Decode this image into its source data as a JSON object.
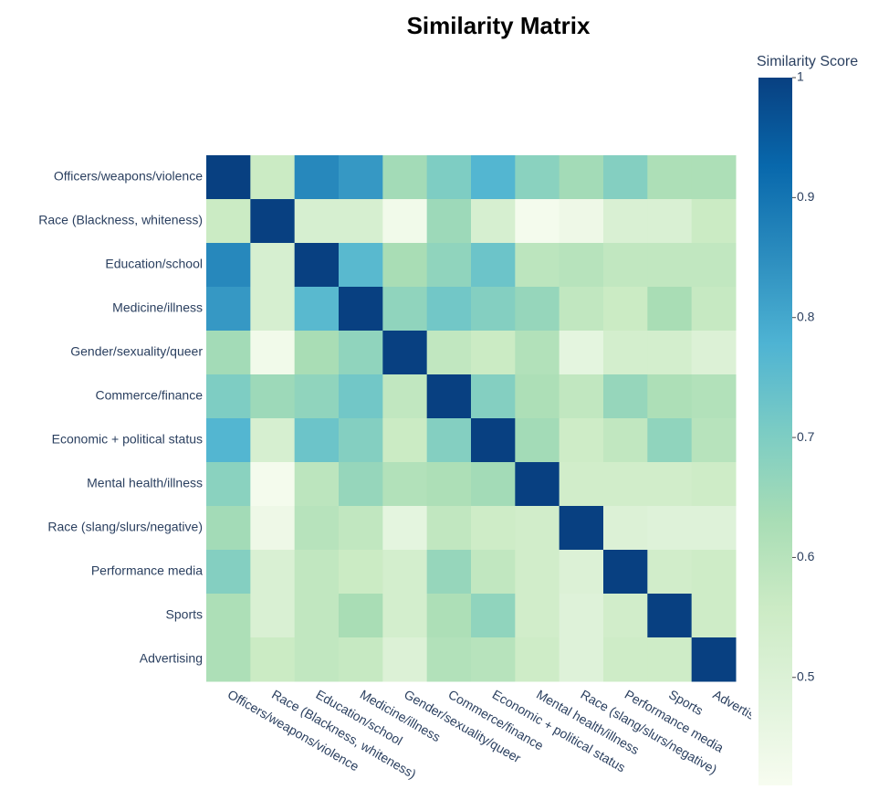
{
  "chart_data": {
    "type": "heatmap",
    "title": "Similarity Matrix",
    "colorbar_title": "Similarity Score",
    "x": [
      "Officers/weapons/violence",
      "Race (Blackness, whiteness)",
      "Education/school",
      "Medicine/illness",
      "Gender/sexuality/queer",
      "Commerce/finance",
      "Economic + political status",
      "Mental health/illness",
      "Race (slang/slurs/negative)",
      "Performance media",
      "Sports",
      "Advertising"
    ],
    "y": [
      "Officers/weapons/violence",
      "Race (Blackness, whiteness)",
      "Education/school",
      "Medicine/illness",
      "Gender/sexuality/queer",
      "Commerce/finance",
      "Economic + political status",
      "Mental health/illness",
      "Race (slang/slurs/negative)",
      "Performance media",
      "Sports",
      "Advertising"
    ],
    "z": [
      [
        1,
        0.56,
        0.86,
        0.83,
        0.64,
        0.7,
        0.77,
        0.68,
        0.64,
        0.69,
        0.62,
        0.62
      ],
      [
        0.56,
        1,
        0.52,
        0.52,
        0.43,
        0.65,
        0.52,
        0.42,
        0.44,
        0.51,
        0.51,
        0.56
      ],
      [
        0.86,
        0.52,
        1,
        0.76,
        0.63,
        0.67,
        0.73,
        0.59,
        0.6,
        0.58,
        0.58,
        0.58
      ],
      [
        0.83,
        0.52,
        0.76,
        1,
        0.67,
        0.72,
        0.69,
        0.66,
        0.58,
        0.56,
        0.63,
        0.57
      ],
      [
        0.64,
        0.43,
        0.63,
        0.67,
        1,
        0.58,
        0.56,
        0.61,
        0.47,
        0.53,
        0.53,
        0.5
      ],
      [
        0.7,
        0.65,
        0.67,
        0.72,
        0.58,
        1,
        0.69,
        0.62,
        0.58,
        0.66,
        0.62,
        0.61
      ],
      [
        0.77,
        0.52,
        0.73,
        0.69,
        0.56,
        0.69,
        1,
        0.64,
        0.55,
        0.58,
        0.67,
        0.6
      ],
      [
        0.68,
        0.42,
        0.59,
        0.66,
        0.61,
        0.62,
        0.64,
        1,
        0.54,
        0.54,
        0.54,
        0.55
      ],
      [
        0.64,
        0.44,
        0.6,
        0.58,
        0.47,
        0.58,
        0.55,
        0.54,
        1,
        0.5,
        0.49,
        0.49
      ],
      [
        0.69,
        0.51,
        0.58,
        0.56,
        0.53,
        0.66,
        0.58,
        0.54,
        0.5,
        1,
        0.54,
        0.55
      ],
      [
        0.62,
        0.51,
        0.58,
        0.63,
        0.53,
        0.62,
        0.67,
        0.54,
        0.49,
        0.54,
        1,
        0.55
      ],
      [
        0.62,
        0.56,
        0.58,
        0.57,
        0.5,
        0.61,
        0.6,
        0.55,
        0.49,
        0.55,
        0.55,
        1
      ]
    ],
    "zlim": [
      0.41,
      1
    ],
    "zticks": [
      0.5,
      0.6,
      0.7,
      0.8,
      0.9,
      1
    ],
    "colorscale": [
      [
        0,
        "#f7fcf0"
      ],
      [
        0.125,
        "#e0f3db"
      ],
      [
        0.25,
        "#ccebc5"
      ],
      [
        0.375,
        "#a8ddb5"
      ],
      [
        0.5,
        "#7bccc4"
      ],
      [
        0.625,
        "#4eb3d3"
      ],
      [
        0.75,
        "#2b8cbe"
      ],
      [
        0.875,
        "#0868ac"
      ],
      [
        1,
        "#084081"
      ]
    ]
  }
}
